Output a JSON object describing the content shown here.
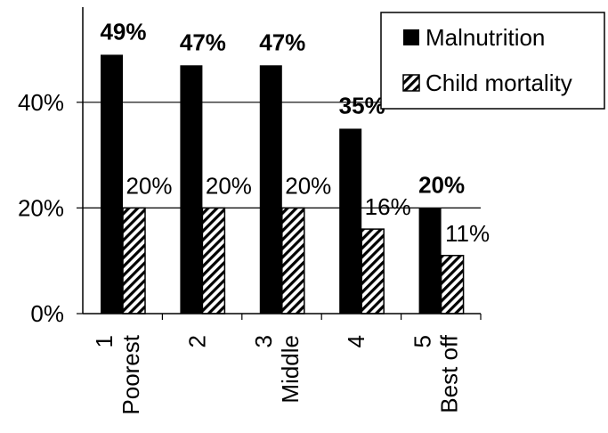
{
  "chart_data": {
    "type": "bar",
    "categories": [
      [
        "1",
        "Poorest"
      ],
      [
        "2"
      ],
      [
        "3",
        "Middle"
      ],
      [
        "4"
      ],
      [
        "5",
        "Best off"
      ]
    ],
    "series": [
      {
        "name": "Malnutrition",
        "values": [
          49,
          47,
          47,
          35,
          20
        ],
        "labels": [
          "49%",
          "47%",
          "47%",
          "35%",
          "20%"
        ],
        "fill": "#000000"
      },
      {
        "name": "Child mortality",
        "values": [
          20,
          20,
          20,
          16,
          11
        ],
        "labels": [
          "20%",
          "20%",
          "20%",
          "16%",
          "11%"
        ],
        "fill": "hatch"
      }
    ],
    "yticks": [
      "0%",
      "20%",
      "40%"
    ],
    "ytick_values": [
      0,
      20,
      40
    ],
    "ylim": [
      0,
      50
    ],
    "grid": true,
    "legend": "top-right",
    "colors": {
      "bar": "#000000",
      "background": "#ffffff"
    }
  }
}
